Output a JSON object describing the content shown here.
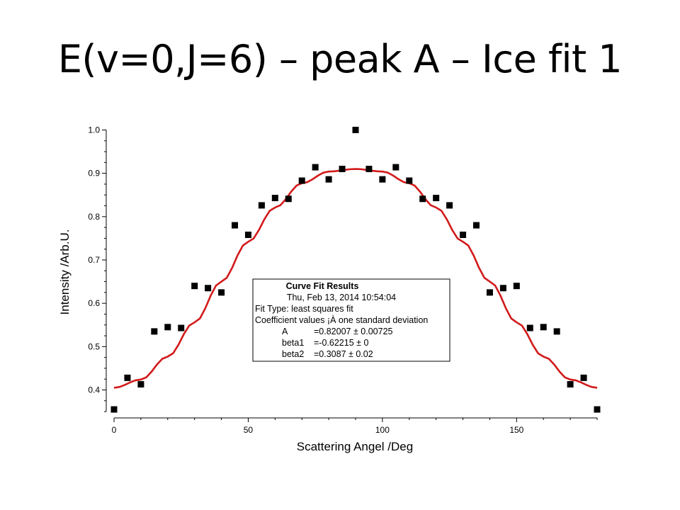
{
  "slide": {
    "title": "E(v=0,J=6) – peak A – Ice fit 1"
  },
  "colors": {
    "points": "#000000",
    "fit": "#d21a1a",
    "axes": "#000000"
  },
  "chart_data": {
    "type": "scatter",
    "title": "",
    "xlabel": "Scattering Angel /Deg",
    "ylabel": "Intensity /Arb.U.",
    "xlim": [
      0,
      180
    ],
    "ylim": [
      0.35,
      1.0
    ],
    "x_ticks": [
      0,
      50,
      100,
      150
    ],
    "y_ticks": [
      0.4,
      0.5,
      0.6,
      0.7,
      0.8,
      0.9,
      1.0
    ],
    "x_tick_labels": [
      "0",
      "50",
      "100",
      "150"
    ],
    "y_tick_labels": [
      "0.4",
      "0.5",
      "0.6",
      "0.7",
      "0.8",
      "0.9",
      "1.0"
    ],
    "grid": false,
    "series": [
      {
        "marker": "square",
        "x": [
          0,
          5,
          10,
          15,
          20,
          25,
          30,
          35,
          40,
          45,
          50,
          55,
          60,
          65,
          70,
          75,
          80,
          85,
          90,
          95,
          100,
          105,
          110,
          115,
          120,
          125,
          130,
          135,
          140,
          145,
          150,
          155,
          160,
          165,
          170,
          175,
          180
        ],
        "y": [
          0.355,
          0.428,
          0.413,
          0.535,
          0.545,
          0.543,
          0.64,
          0.635,
          0.625,
          0.78,
          0.758,
          0.826,
          0.843,
          0.841,
          0.883,
          0.914,
          0.886,
          0.91,
          1.0,
          0.91,
          0.886,
          0.914,
          0.883,
          0.841,
          0.843,
          0.826,
          0.758,
          0.78,
          0.625,
          0.635,
          0.64,
          0.543,
          0.545,
          0.535,
          0.413,
          0.428,
          0.355
        ]
      },
      {
        "marker": "line",
        "fit": {
          "A": 0.82007,
          "beta1": -0.62215,
          "beta2": 0.3087
        },
        "x": [
          0,
          10,
          20,
          30,
          40,
          50,
          60,
          70,
          80,
          90,
          100,
          110,
          120,
          130,
          140,
          150,
          160,
          170,
          180
        ],
        "y": [
          0.405,
          0.424,
          0.477,
          0.556,
          0.65,
          0.742,
          0.821,
          0.877,
          0.904,
          0.91,
          0.904,
          0.877,
          0.821,
          0.742,
          0.65,
          0.556,
          0.477,
          0.424,
          0.405
        ]
      }
    ],
    "annotation": {
      "lines": [
        "Curve Fit Results",
        "Thu, Feb 13, 2014 10:54:04",
        "Fit Type: least squares fit",
        "Coefficient values ¡À one standard deviation"
      ],
      "params": [
        {
          "name": "A",
          "value": "=0.82007 ± 0.00725"
        },
        {
          "name": "beta1",
          "value": "=-0.62215 ± 0"
        },
        {
          "name": "beta2",
          "value": "=0.3087 ± 0.02"
        }
      ]
    }
  }
}
